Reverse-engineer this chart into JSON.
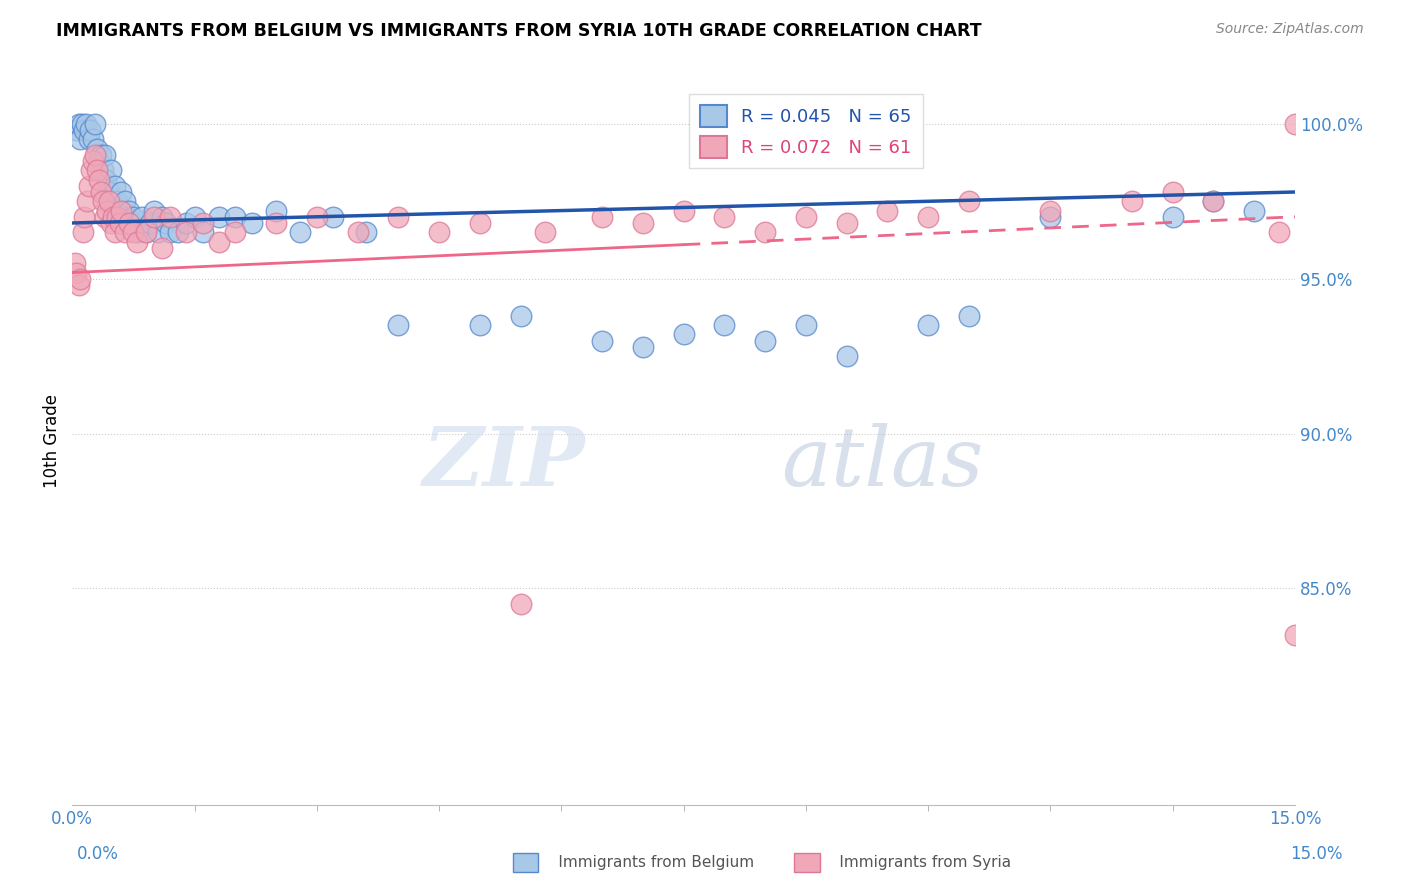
{
  "title": "IMMIGRANTS FROM BELGIUM VS IMMIGRANTS FROM SYRIA 10TH GRADE CORRELATION CHART",
  "source": "Source: ZipAtlas.com",
  "ylabel": "10th Grade",
  "xmin": 0.0,
  "xmax": 15.0,
  "ymin": 78.0,
  "ymax": 101.5,
  "yticks_right": [
    85.0,
    90.0,
    95.0,
    100.0
  ],
  "blue_R": 0.045,
  "blue_N": 65,
  "pink_R": 0.072,
  "pink_N": 61,
  "blue_dot_face": "#A8C8E8",
  "blue_dot_edge": "#5588CC",
  "pink_dot_face": "#F0A8B8",
  "pink_dot_edge": "#DD7799",
  "blue_line_color": "#2255AA",
  "pink_line_color": "#EE6688",
  "watermark_zip": "ZIP",
  "watermark_atlas": "atlas",
  "blue_scatter_x": [
    0.05,
    0.08,
    0.1,
    0.12,
    0.15,
    0.17,
    0.2,
    0.22,
    0.25,
    0.28,
    0.3,
    0.32,
    0.35,
    0.38,
    0.4,
    0.42,
    0.45,
    0.48,
    0.5,
    0.52,
    0.55,
    0.58,
    0.6,
    0.62,
    0.65,
    0.68,
    0.7,
    0.72,
    0.75,
    0.8,
    0.85,
    0.9,
    0.95,
    1.0,
    1.05,
    1.1,
    1.15,
    1.2,
    1.3,
    1.4,
    1.5,
    1.6,
    1.8,
    2.0,
    2.2,
    2.5,
    2.8,
    3.2,
    3.6,
    4.0,
    5.0,
    5.5,
    6.5,
    7.0,
    7.5,
    8.0,
    8.5,
    9.0,
    9.5,
    10.5,
    11.0,
    12.0,
    13.5,
    14.0,
    14.5
  ],
  "blue_scatter_y": [
    99.8,
    100.0,
    99.5,
    100.0,
    99.8,
    100.0,
    99.5,
    99.8,
    99.5,
    100.0,
    99.2,
    98.8,
    99.0,
    98.5,
    99.0,
    98.2,
    97.8,
    98.5,
    97.5,
    98.0,
    97.5,
    97.0,
    97.8,
    97.2,
    97.5,
    97.0,
    97.2,
    96.8,
    97.0,
    96.5,
    97.0,
    96.5,
    96.8,
    97.2,
    96.5,
    97.0,
    96.8,
    96.5,
    96.5,
    96.8,
    97.0,
    96.5,
    97.0,
    97.0,
    96.8,
    97.2,
    96.5,
    97.0,
    96.5,
    93.5,
    93.5,
    93.8,
    93.0,
    92.8,
    93.2,
    93.5,
    93.0,
    93.5,
    92.5,
    93.5,
    93.8,
    97.0,
    97.0,
    97.5,
    97.2
  ],
  "pink_scatter_x": [
    0.03,
    0.05,
    0.08,
    0.1,
    0.13,
    0.15,
    0.18,
    0.2,
    0.23,
    0.25,
    0.28,
    0.3,
    0.33,
    0.35,
    0.38,
    0.4,
    0.43,
    0.45,
    0.48,
    0.5,
    0.53,
    0.55,
    0.58,
    0.6,
    0.65,
    0.7,
    0.75,
    0.8,
    0.9,
    1.0,
    1.1,
    1.2,
    1.4,
    1.6,
    1.8,
    2.0,
    2.5,
    3.0,
    3.5,
    4.0,
    4.5,
    5.0,
    5.5,
    5.8,
    6.5,
    7.0,
    7.5,
    8.0,
    8.5,
    9.0,
    9.5,
    10.0,
    10.5,
    11.0,
    12.0,
    13.0,
    13.5,
    14.0,
    14.8,
    15.0,
    15.0
  ],
  "pink_scatter_y": [
    95.5,
    95.2,
    94.8,
    95.0,
    96.5,
    97.0,
    97.5,
    98.0,
    98.5,
    98.8,
    99.0,
    98.5,
    98.2,
    97.8,
    97.5,
    97.0,
    97.2,
    97.5,
    96.8,
    97.0,
    96.5,
    97.0,
    96.8,
    97.2,
    96.5,
    96.8,
    96.5,
    96.2,
    96.5,
    97.0,
    96.0,
    97.0,
    96.5,
    96.8,
    96.2,
    96.5,
    96.8,
    97.0,
    96.5,
    97.0,
    96.5,
    96.8,
    84.5,
    96.5,
    97.0,
    96.8,
    97.2,
    97.0,
    96.5,
    97.0,
    96.8,
    97.2,
    97.0,
    97.5,
    97.2,
    97.5,
    97.8,
    97.5,
    96.5,
    100.0,
    83.5
  ],
  "pink_solid_xmax": 7.5,
  "legend_blue_label": "R = 0.045   N = 65",
  "legend_pink_label": "R = 0.072   N = 61"
}
